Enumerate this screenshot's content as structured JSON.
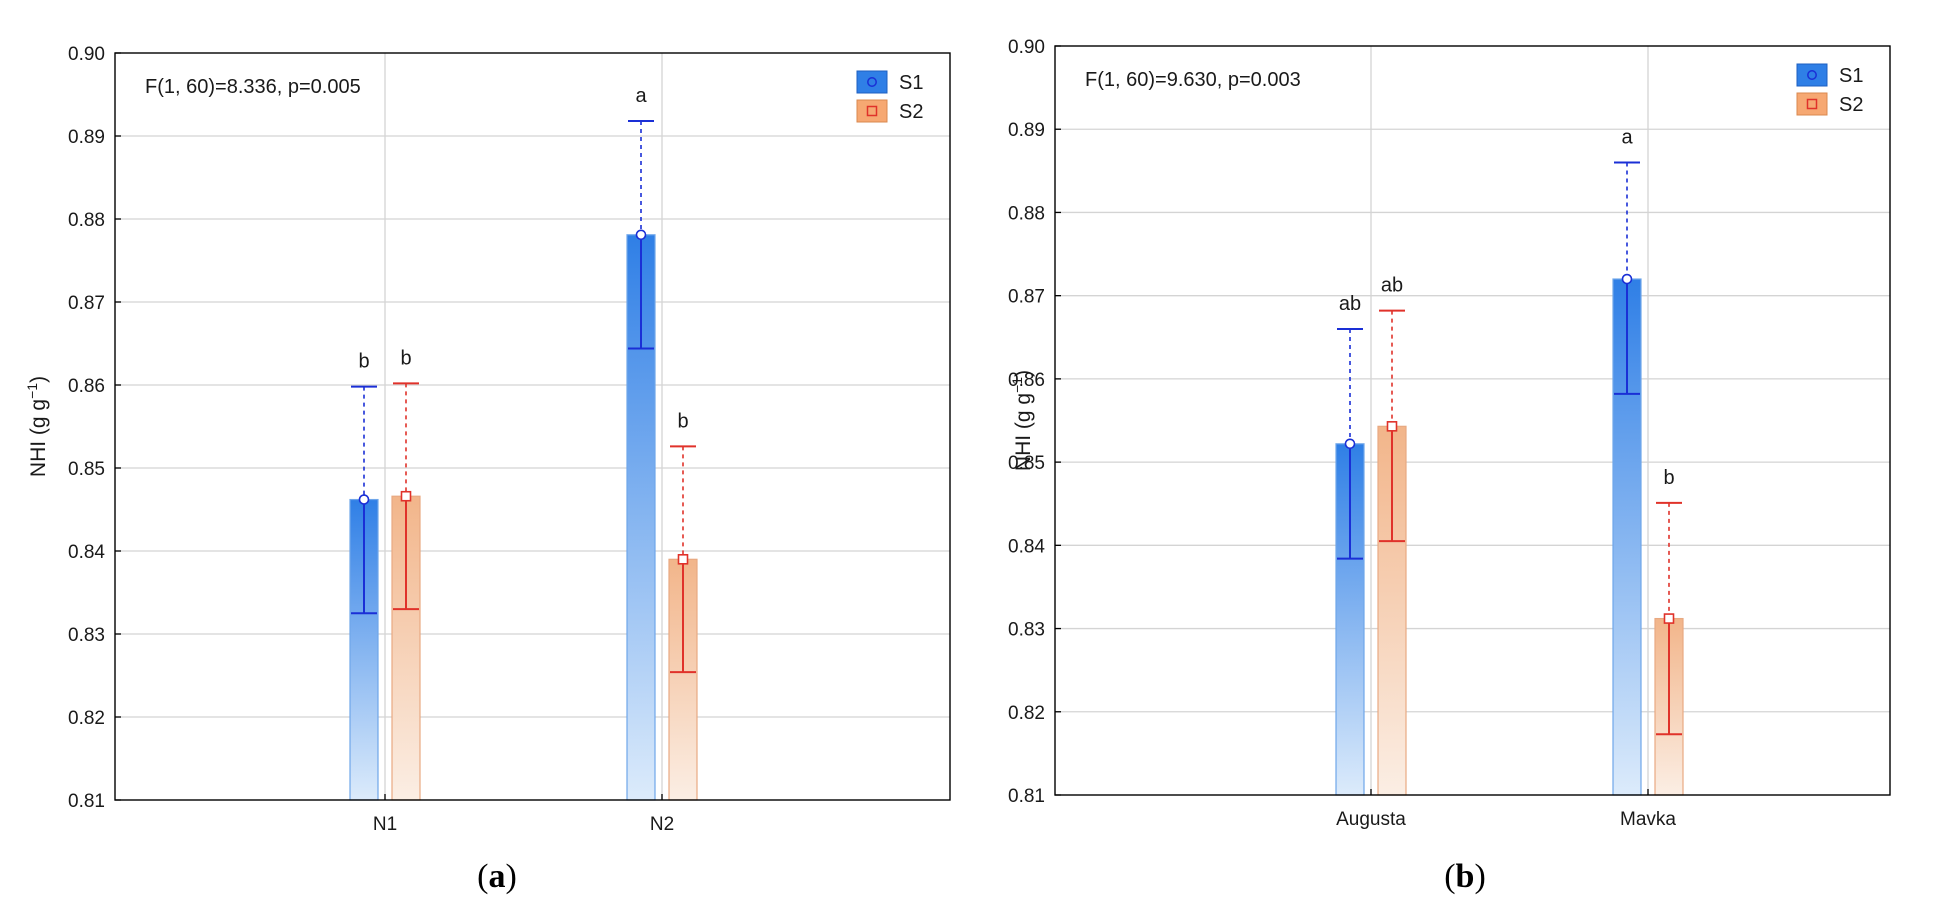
{
  "colors": {
    "s1_bar_top": "#2f7fe6",
    "s1_bar_bottom": "#dcebfb",
    "s1_error": "#1a2fd6",
    "s2_bar_top": "#f2b58a",
    "s2_bar_bottom": "#fbeee4",
    "s2_error": "#e0322a",
    "grid": "#d4d4d4",
    "axis": "#000000"
  },
  "chart_data": [
    {
      "type": "bar",
      "panel_label": "a",
      "annotation": "F(1, 60)=8.336, p=0.005",
      "xlabel": "",
      "ylabel": "NHI (g g",
      "ylabel_superscript": "−1",
      "ylabel_close": ")",
      "ylim": [
        0.81,
        0.9
      ],
      "yticks": [
        "0.81",
        "0.82",
        "0.83",
        "0.84",
        "0.85",
        "0.86",
        "0.87",
        "0.88",
        "0.89",
        "0.90"
      ],
      "grid": true,
      "legend_position": "top-right",
      "categories": [
        "N1",
        "N2"
      ],
      "series": [
        {
          "name": "S1",
          "marker": "circle",
          "values": [
            0.8462,
            0.8781
          ],
          "ci_low": [
            0.8325,
            0.8644
          ],
          "ci_high": [
            0.8598,
            0.8918
          ],
          "letters": [
            "b",
            "a"
          ]
        },
        {
          "name": "S2",
          "marker": "square",
          "values": [
            0.8466,
            0.839
          ],
          "ci_low": [
            0.833,
            0.8254
          ],
          "ci_high": [
            0.8602,
            0.8526
          ],
          "letters": [
            "b",
            "b"
          ]
        }
      ]
    },
    {
      "type": "bar",
      "panel_label": "b",
      "annotation": "F(1, 60)=9.630, p=0.003",
      "xlabel": "",
      "ylabel": "NHI (g g",
      "ylabel_superscript": "−1",
      "ylabel_close": ")",
      "ylim": [
        0.81,
        0.9
      ],
      "yticks": [
        "0.81",
        "0.82",
        "0.83",
        "0.84",
        "0.85",
        "0.86",
        "0.87",
        "0.88",
        "0.89",
        "0.90"
      ],
      "grid": true,
      "legend_position": "top-right",
      "categories": [
        "Augusta",
        "Mavka"
      ],
      "series": [
        {
          "name": "S1",
          "marker": "circle",
          "values": [
            0.8522,
            0.872
          ],
          "ci_low": [
            0.8384,
            0.8582
          ],
          "ci_high": [
            0.866,
            0.886
          ],
          "letters": [
            "ab",
            "a"
          ]
        },
        {
          "name": "S2",
          "marker": "square",
          "values": [
            0.8543,
            0.8312
          ],
          "ci_low": [
            0.8405,
            0.8173
          ],
          "ci_high": [
            0.8682,
            0.8451
          ],
          "letters": [
            "ab",
            "b"
          ]
        }
      ]
    }
  ]
}
